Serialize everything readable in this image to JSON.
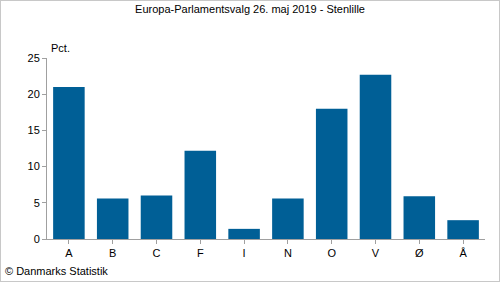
{
  "chart_data": {
    "type": "bar",
    "title": "Europa-Parlamentsvalg 26. maj 2019 - Stenlille",
    "y_label": "Pct.",
    "categories": [
      "A",
      "B",
      "C",
      "F",
      "I",
      "N",
      "O",
      "V",
      "Ø",
      "Å"
    ],
    "values": [
      21.0,
      5.6,
      6.0,
      12.2,
      1.4,
      5.6,
      18.0,
      22.7,
      5.9,
      2.6
    ],
    "color": "#005f96",
    "ylim": [
      0,
      25
    ],
    "yticks": [
      0,
      5,
      10,
      15,
      20,
      25
    ],
    "grid": false,
    "annotations": [
      "© Danmarks Statistik"
    ]
  }
}
